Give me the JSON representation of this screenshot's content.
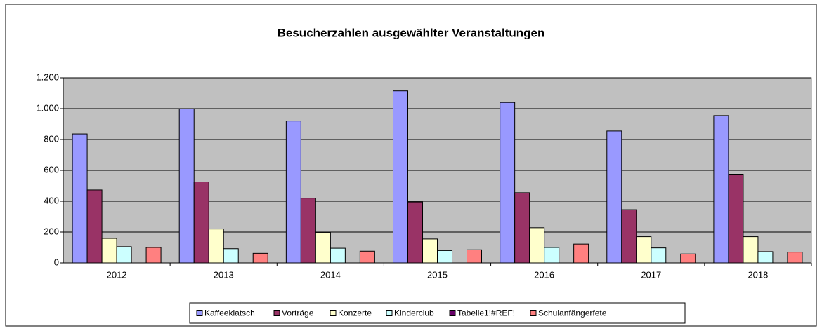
{
  "chart_data": {
    "type": "bar",
    "title": "Besucherzahlen ausgewählter Veranstaltungen",
    "categories": [
      "2012",
      "2013",
      "2014",
      "2015",
      "2016",
      "2017",
      "2018"
    ],
    "series": [
      {
        "name": "Kaffeeklatsch",
        "color": "#9999ff",
        "values": [
          836,
          1000,
          920,
          1115,
          1040,
          855,
          955
        ]
      },
      {
        "name": "Vorträge",
        "color": "#993366",
        "values": [
          473,
          525,
          420,
          395,
          455,
          345,
          575
        ]
      },
      {
        "name": "Konzerte",
        "color": "#ffffcc",
        "values": [
          159,
          220,
          198,
          155,
          228,
          170,
          170
        ]
      },
      {
        "name": "Kinderclub",
        "color": "#ccffff",
        "values": [
          105,
          92,
          95,
          80,
          100,
          97,
          73
        ]
      },
      {
        "name": "Tabelle1!#REF!",
        "color": "#660066",
        "values": [
          0,
          0,
          0,
          0,
          0,
          0,
          0
        ]
      },
      {
        "name": "Schulanfängerfete",
        "color": "#ff8080",
        "values": [
          100,
          62,
          76,
          85,
          122,
          58,
          70
        ]
      }
    ],
    "ylim": [
      0,
      1200
    ],
    "yticks": [
      0,
      200,
      400,
      600,
      800,
      {
        "value": 1000,
        "label": "1.000"
      },
      {
        "value": 1200,
        "label": "1.200"
      }
    ],
    "grid": true,
    "legend": "bottom"
  }
}
